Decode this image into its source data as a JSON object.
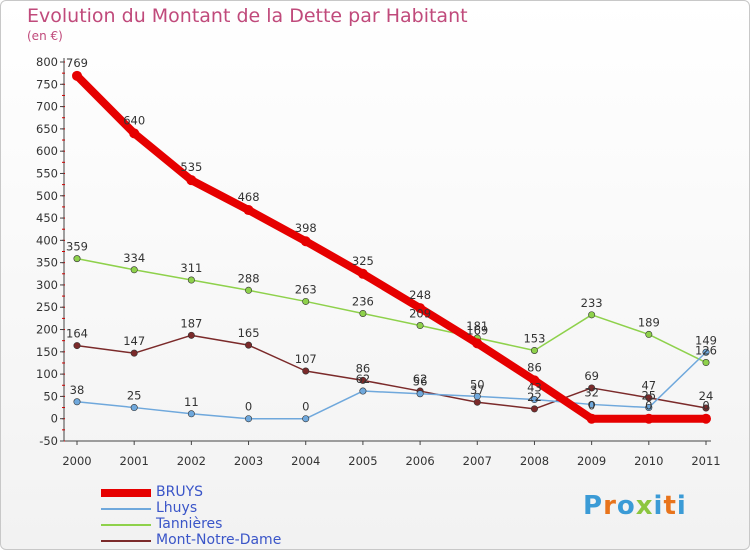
{
  "header": {
    "title": "Evolution du Montant de la Dette par Habitant",
    "unit": "(en €)"
  },
  "logo": {
    "text": "Proxiti",
    "letters": [
      "P",
      "r",
      "o",
      "x",
      "i",
      "t",
      "i"
    ],
    "colors": [
      "#3b9bd6",
      "#e8741c",
      "#3b9bd6",
      "#8cc63f",
      "#3b9bd6",
      "#e8741c",
      "#3b9bd6"
    ]
  },
  "chart_data": {
    "type": "line",
    "title": "Evolution du Montant de la Dette par Habitant",
    "ylabel": "(en €)",
    "x": [
      "2000",
      "2001",
      "2002",
      "2003",
      "2004",
      "2005",
      "2006",
      "2007",
      "2008",
      "2009",
      "2010",
      "2011"
    ],
    "ylim": [
      -50,
      800
    ],
    "yticks": [
      -50,
      0,
      50,
      100,
      150,
      200,
      250,
      300,
      350,
      400,
      450,
      500,
      550,
      600,
      650,
      700,
      750,
      800
    ],
    "grid": false,
    "legend_position": "bottom-left",
    "series": [
      {
        "name": "BRUYS",
        "color": "#e60000",
        "values": [
          769,
          640,
          535,
          468,
          398,
          325,
          248,
          169,
          86,
          0,
          0,
          0
        ],
        "labels": [
          "769",
          "640",
          "535",
          "468",
          "398",
          "325",
          "248",
          "169",
          "86",
          "0",
          "0",
          "0"
        ]
      },
      {
        "name": "Lhuys",
        "color": "#6fa8dc",
        "values": [
          38,
          25,
          11,
          0,
          0,
          62,
          56,
          50,
          43,
          32,
          25,
          149
        ],
        "labels": [
          "38",
          "25",
          "11",
          "0",
          "0",
          "62",
          "56",
          "50",
          "43",
          "32",
          "25",
          "149"
        ]
      },
      {
        "name": "Tannières",
        "color": "#8ed14b",
        "values": [
          359,
          334,
          311,
          288,
          263,
          236,
          209,
          181,
          153,
          233,
          189,
          126
        ],
        "labels": [
          "359",
          "334",
          "311",
          "288",
          "263",
          "236",
          "209",
          "181",
          "153",
          "233",
          "189",
          "126"
        ]
      },
      {
        "name": "Mont-Notre-Dame",
        "color": "#7b2a2a",
        "values": [
          164,
          147,
          187,
          165,
          107,
          86,
          62,
          37,
          22,
          69,
          47,
          24
        ],
        "labels": [
          "164",
          "147",
          "187",
          "165",
          "107",
          "86",
          "62",
          "37",
          "22",
          "69",
          "47",
          "24"
        ]
      }
    ]
  }
}
